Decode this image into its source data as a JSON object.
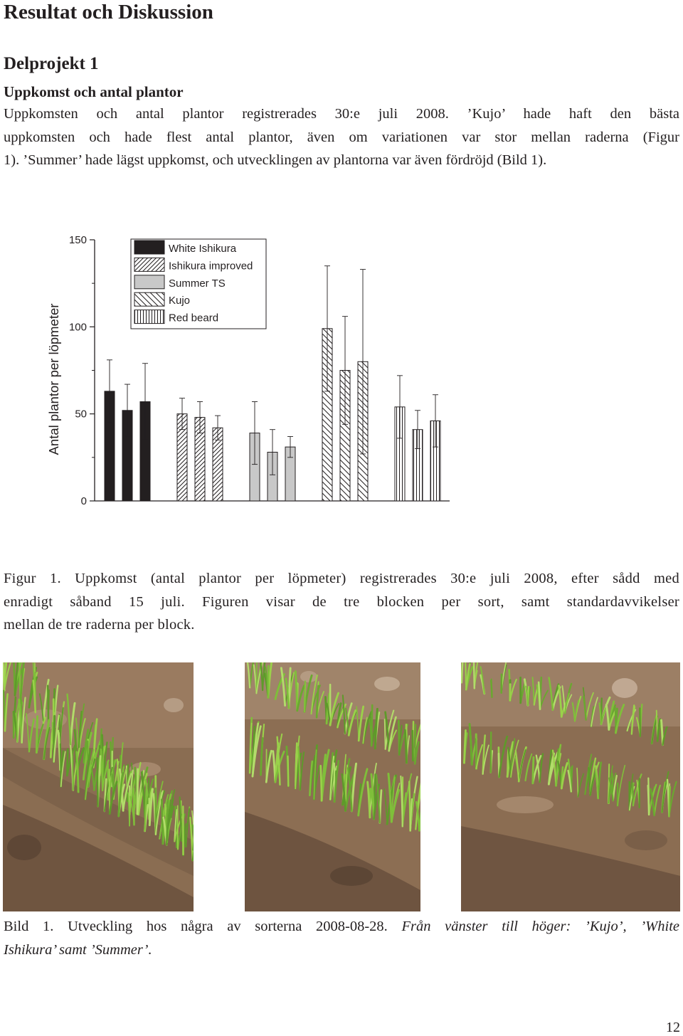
{
  "section_title": "Resultat och Diskussion",
  "subproject_title": "Delprojekt 1",
  "subsection_title": "Uppkomst och antal plantor",
  "paragraph_lines": [
    "Uppkomsten och antal plantor registrerades 30:e juli 2008. ’Kujo’ hade haft den bästa",
    "uppkomsten och hade flest antal plantor, även om variationen var stor mellan raderna (Figur",
    "1). ’Summer’ hade lägst uppkomst, och utvecklingen av plantorna var även fördröjd (Bild 1)."
  ],
  "chart_data": {
    "type": "bar",
    "ylabel": "Antal plantor per löpmeter",
    "ylim": [
      0,
      150
    ],
    "yticks": [
      0,
      50,
      100,
      150
    ],
    "legend_position": "top-left",
    "grouping": "three blocks per cultivar",
    "series": [
      {
        "name": "White Ishikura",
        "pattern": "solid",
        "color": "#231f20",
        "values": [
          63,
          52,
          57
        ],
        "sd": [
          18,
          15,
          22
        ]
      },
      {
        "name": "Ishikura improved",
        "pattern": "diagonal-right",
        "color": "#ffffff",
        "values": [
          50,
          48,
          42
        ],
        "sd": [
          9,
          9,
          7
        ]
      },
      {
        "name": "Summer TS",
        "pattern": "solid",
        "color": "#c8c8c8",
        "values": [
          39,
          28,
          31
        ],
        "sd": [
          18,
          13,
          6
        ]
      },
      {
        "name": "Kujo",
        "pattern": "diagonal-left",
        "color": "#ffffff",
        "values": [
          99,
          75,
          80
        ],
        "sd": [
          36,
          31,
          53
        ]
      },
      {
        "name": "Red beard",
        "pattern": "vertical",
        "color": "#ffffff",
        "values": [
          54,
          41,
          46
        ],
        "sd": [
          18,
          11,
          15
        ]
      }
    ]
  },
  "figure_caption_lines": [
    "Figur 1. Uppkomst (antal plantor per löpmeter) registrerades 30:e juli 2008, efter sådd med",
    "enradigt såband 15 juli. Figuren visar de tre blocken per sort, samt standardavvikelser",
    "mellan de tre raderna per block."
  ],
  "photo_caption": {
    "line1_plain": "Bild 1. Utveckling hos några av sorterna 2008-08-28. ",
    "line1_italic": "Från vänster till höger: ’Kujo’, ’White",
    "line2_italic": "Ishikura’ samt ’Summer’."
  },
  "photos": [
    "Kujo",
    "White Ishikura",
    "Summer"
  ],
  "page_number": "12"
}
